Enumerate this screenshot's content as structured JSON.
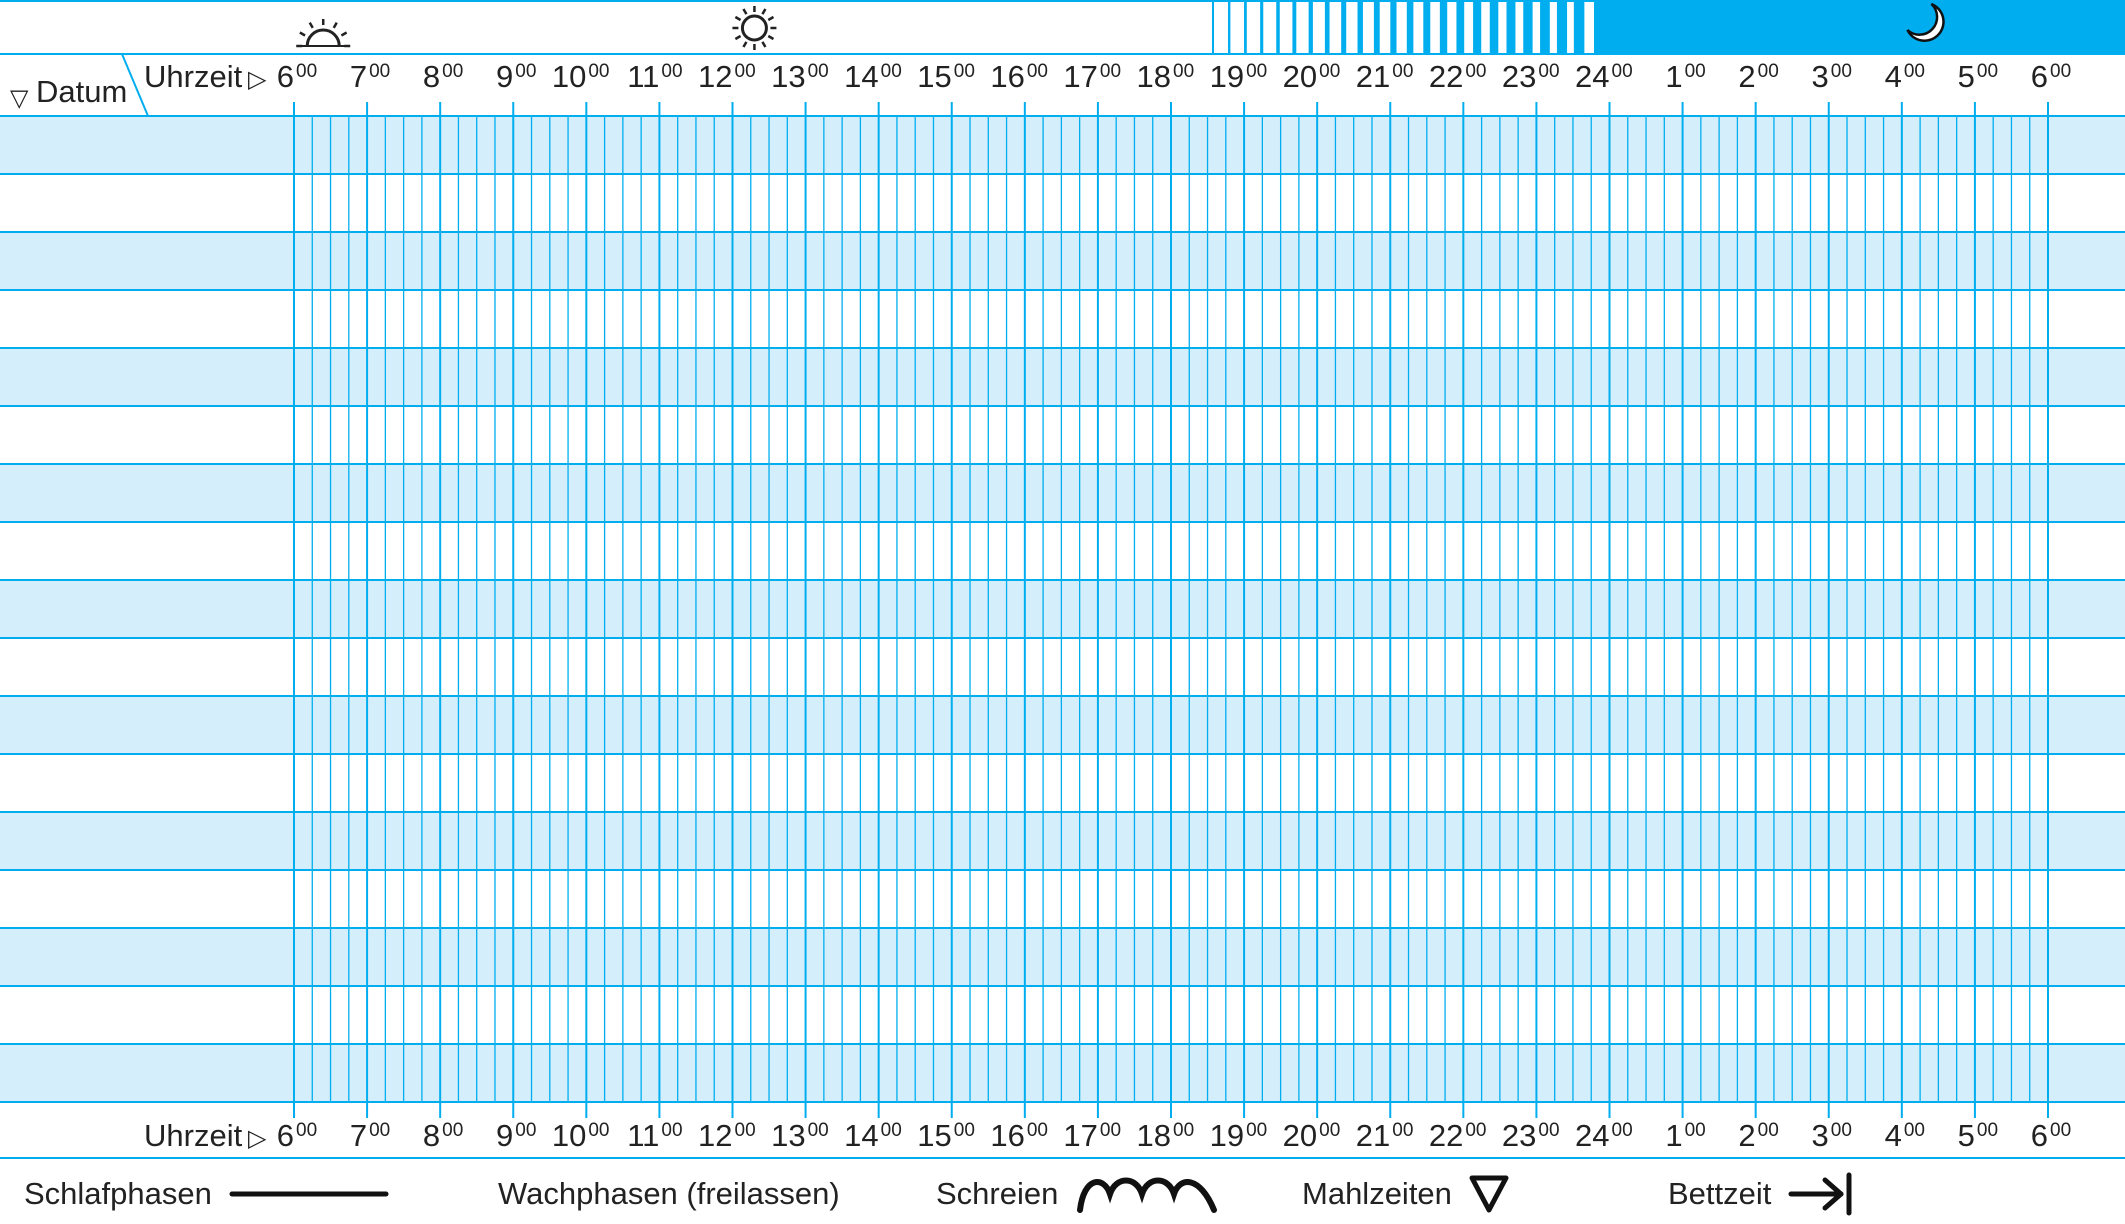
{
  "header": {
    "time_label": "Uhrzeit",
    "time_arrow": "▷",
    "date_label": "Datum",
    "date_arrow": "▽",
    "hours": [
      "6",
      "7",
      "8",
      "9",
      "10",
      "11",
      "12",
      "13",
      "14",
      "15",
      "16",
      "17",
      "18",
      "19",
      "20",
      "21",
      "22",
      "23",
      "24",
      "1",
      "2",
      "3",
      "4",
      "5",
      "6"
    ],
    "minutes": "00",
    "day_icons": [
      "sunrise-icon",
      "sun-icon"
    ],
    "night_icon": "moon-icon"
  },
  "grid": {
    "rows": 17,
    "subdivisions_per_hour": 4
  },
  "legend": [
    {
      "label": "Schlafphasen",
      "icon": "line-icon"
    },
    {
      "label": "Wachphasen (freilassen)",
      "icon": ""
    },
    {
      "label": "Schreien",
      "icon": "wave-icon"
    },
    {
      "label": "Mahlzeiten",
      "icon": "triangle-down-icon"
    },
    {
      "label": "Bettzeit",
      "icon": "arrow-to-bar-icon"
    }
  ],
  "colors": {
    "accent": "#00AEEF",
    "row_fill": "#D5EEFB",
    "night_bar": "#00AEEF",
    "ink": "#222222"
  }
}
